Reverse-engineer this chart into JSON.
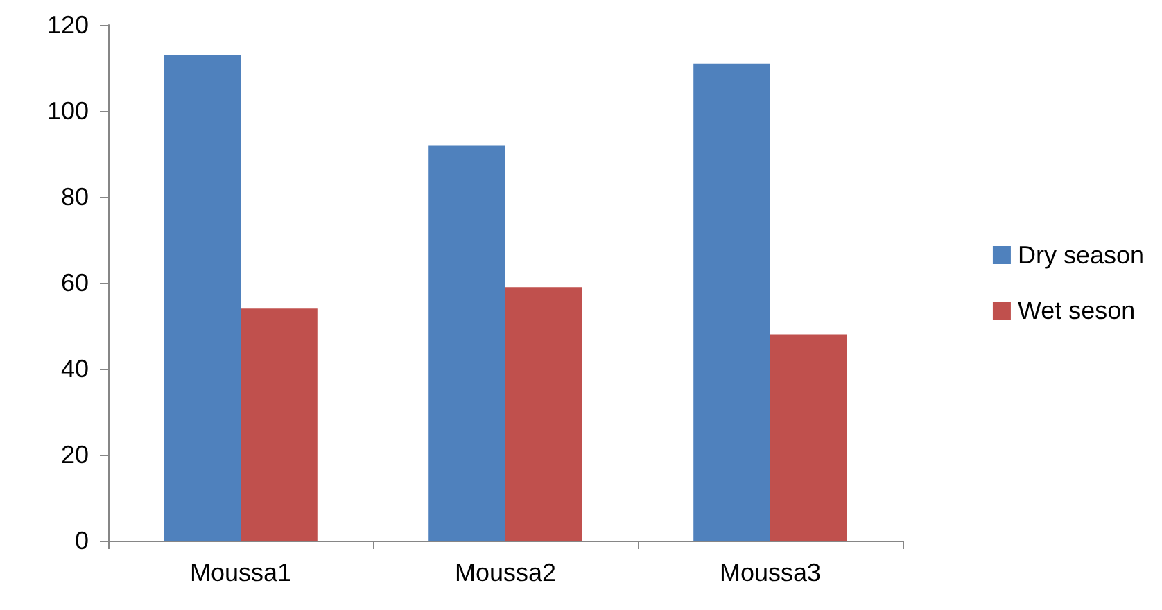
{
  "chart_data": {
    "type": "bar",
    "categories": [
      "Moussa1",
      "Moussa2",
      "Moussa3"
    ],
    "series": [
      {
        "name": "Dry season",
        "color": "#4f81bd",
        "values": [
          113,
          92,
          111
        ]
      },
      {
        "name": "Wet seson",
        "color": "#c0504d",
        "values": [
          54,
          59,
          48
        ]
      }
    ],
    "ylim": [
      0,
      120
    ],
    "yticks": [
      0,
      20,
      40,
      60,
      80,
      100,
      120
    ],
    "grid": false,
    "legend": "right"
  }
}
